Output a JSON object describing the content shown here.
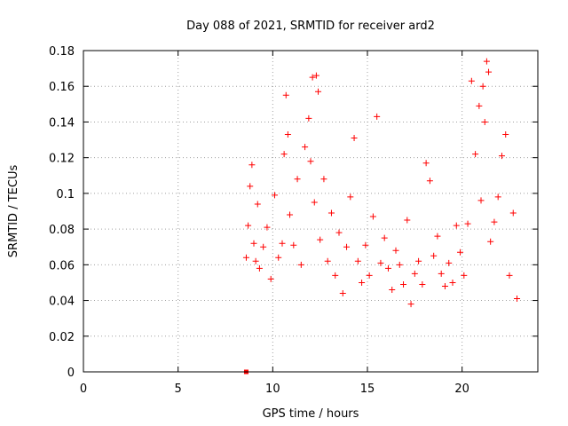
{
  "chart_data": {
    "type": "scatter",
    "title": "Day 088 of 2021, SRMTID for receiver ard2",
    "xlabel": "GPS time / hours",
    "ylabel": "SRMTID / TECUs",
    "xlim": [
      0,
      24
    ],
    "ylim": [
      0,
      0.18
    ],
    "xticks": [
      0,
      5,
      10,
      15,
      20
    ],
    "xtick_labels": [
      "0",
      "5",
      "10",
      "15",
      "20"
    ],
    "yticks": [
      0,
      0.02,
      0.04,
      0.06,
      0.08,
      0.1,
      0.12,
      0.14,
      0.16,
      0.18
    ],
    "ytick_labels": [
      "0",
      "0.02",
      "0.04",
      "0.06",
      "0.08",
      "0.1",
      "0.12",
      "0.14",
      "0.16",
      "0.18"
    ],
    "grid": true,
    "marker": "+",
    "series": [
      {
        "name": "SRMTID",
        "color": "#ff0000",
        "x": [
          8.6,
          8.7,
          8.8,
          8.9,
          9.0,
          9.1,
          9.2,
          9.3,
          9.5,
          9.7,
          9.9,
          10.1,
          10.3,
          10.5,
          10.6,
          10.7,
          10.8,
          10.9,
          11.1,
          11.3,
          11.5,
          11.7,
          11.9,
          12.0,
          12.1,
          12.2,
          12.3,
          12.4,
          12.5,
          12.7,
          12.9,
          13.1,
          13.3,
          13.5,
          13.7,
          13.9,
          14.1,
          14.3,
          14.5,
          14.7,
          14.9,
          15.1,
          15.3,
          15.5,
          15.7,
          15.9,
          16.1,
          16.3,
          16.5,
          16.7,
          16.9,
          17.1,
          17.3,
          17.5,
          17.7,
          17.9,
          18.1,
          18.3,
          18.5,
          18.7,
          18.9,
          19.1,
          19.3,
          19.5,
          19.7,
          19.9,
          20.1,
          20.3,
          20.5,
          20.7,
          20.9,
          21.0,
          21.1,
          21.2,
          21.3,
          21.4,
          21.5,
          21.7,
          21.9,
          22.1,
          22.3,
          22.5,
          22.7,
          22.9
        ],
        "y": [
          0.064,
          0.082,
          0.104,
          0.116,
          0.072,
          0.062,
          0.094,
          0.058,
          0.07,
          0.081,
          0.052,
          0.099,
          0.064,
          0.072,
          0.122,
          0.155,
          0.133,
          0.088,
          0.071,
          0.108,
          0.06,
          0.126,
          0.142,
          0.118,
          0.165,
          0.095,
          0.166,
          0.157,
          0.074,
          0.108,
          0.062,
          0.089,
          0.054,
          0.078,
          0.044,
          0.07,
          0.098,
          0.131,
          0.062,
          0.05,
          0.071,
          0.054,
          0.087,
          0.143,
          0.061,
          0.075,
          0.058,
          0.046,
          0.068,
          0.06,
          0.049,
          0.085,
          0.038,
          0.055,
          0.062,
          0.049,
          0.117,
          0.107,
          0.065,
          0.076,
          0.055,
          0.048,
          0.061,
          0.05,
          0.082,
          0.067,
          0.054,
          0.083,
          0.163,
          0.122,
          0.149,
          0.096,
          0.16,
          0.14,
          0.174,
          0.168,
          0.073,
          0.084,
          0.098,
          0.121,
          0.133,
          0.054,
          0.089,
          0.041
        ]
      }
    ],
    "extra_markers": [
      {
        "name": "start-marker",
        "x": 8.6,
        "y": 0.0,
        "shape": "filled-square",
        "color": "#ff0000"
      }
    ]
  }
}
